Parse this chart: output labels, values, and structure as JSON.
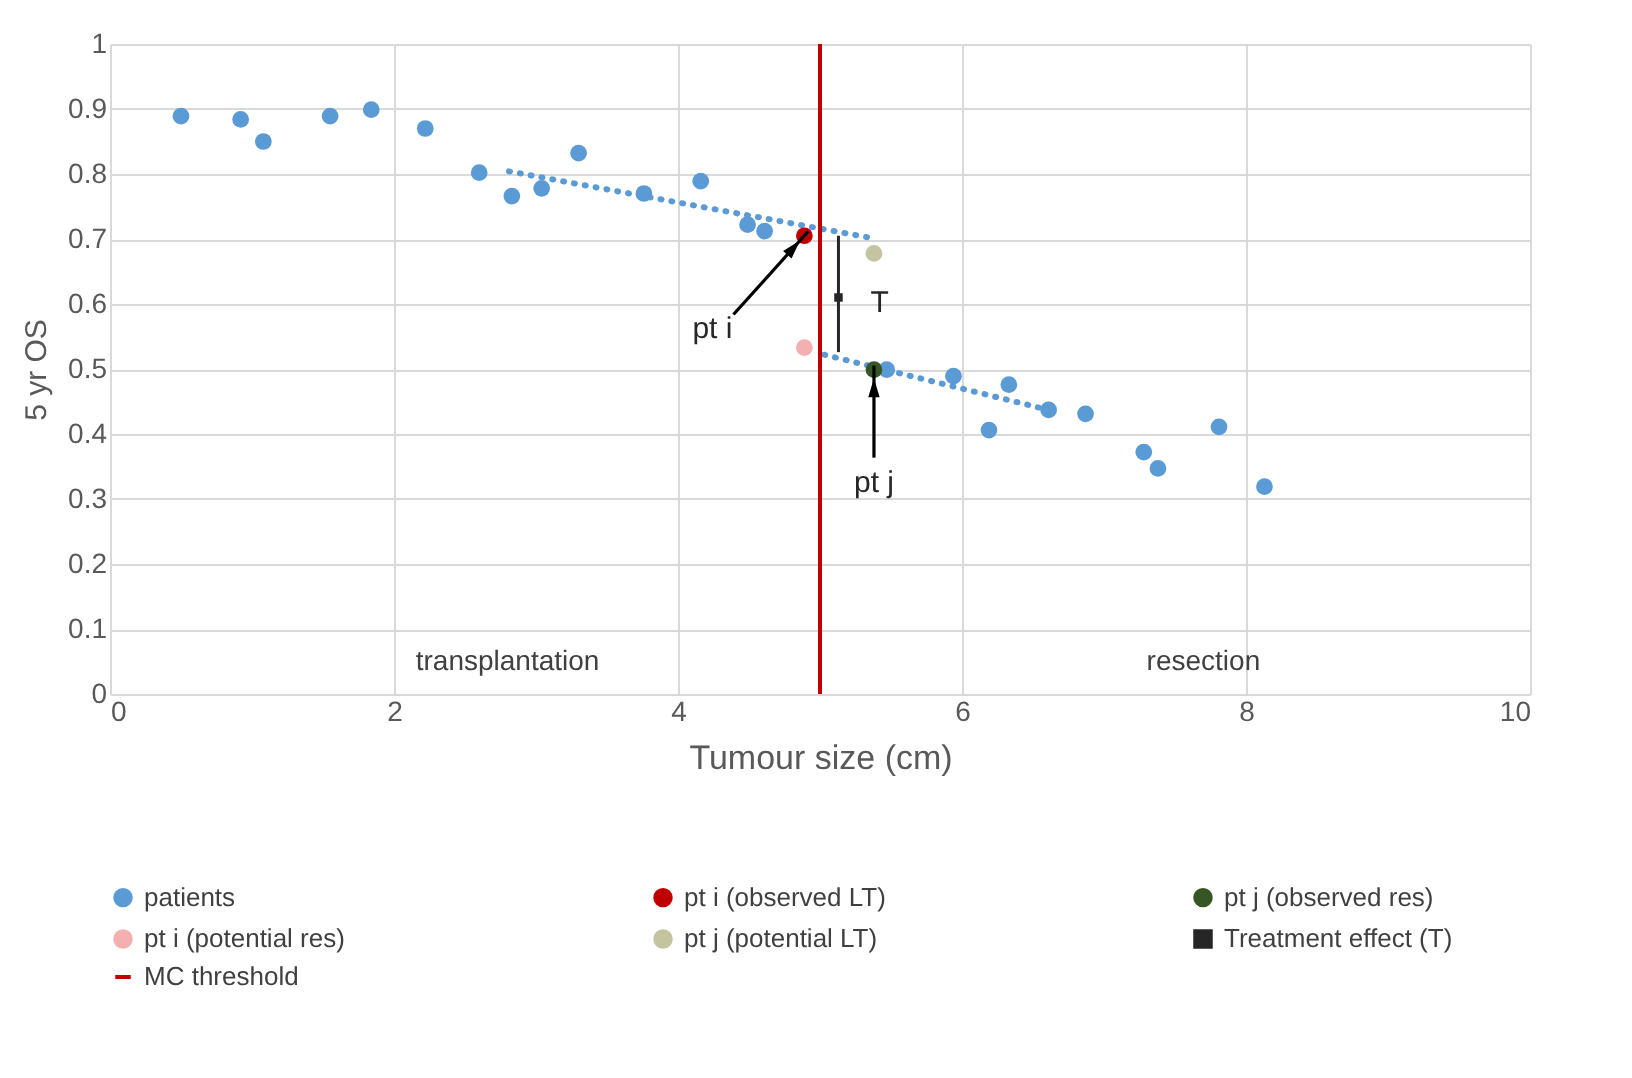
{
  "chart_data": {
    "type": "scatter",
    "xlabel": "Tumour size (cm)",
    "ylabel": "5 yr OS",
    "xlim": [
      0,
      10
    ],
    "xticks": [
      0,
      2,
      4,
      6,
      8,
      10
    ],
    "ylim": [
      0,
      1
    ],
    "yticks": [
      0,
      0.1,
      0.2,
      0.3,
      0.4,
      0.5,
      0.6,
      0.7,
      0.8,
      0.9,
      1
    ],
    "grid": true,
    "legend": "bottom",
    "series": [
      {
        "name": "patients",
        "color": "#5b9bd5",
        "marker": "circle",
        "x": [
          0.5,
          0.92,
          1.08,
          1.55,
          1.84,
          2.22,
          2.6,
          2.83,
          3.04,
          3.3,
          3.76,
          4.16,
          4.49,
          4.61,
          5.47,
          5.94,
          6.33,
          6.19,
          6.61,
          6.87,
          7.28,
          7.38,
          7.81,
          8.13
        ],
        "values": [
          0.889,
          0.884,
          0.85,
          0.889,
          0.899,
          0.87,
          0.802,
          0.766,
          0.778,
          0.832,
          0.77,
          0.789,
          0.722,
          0.712,
          0.499,
          0.489,
          0.476,
          0.406,
          0.437,
          0.431,
          0.372,
          0.347,
          0.411,
          0.319
        ]
      },
      {
        "name": "pt i (observed LT)",
        "color": "#c00000",
        "marker": "circle",
        "x": [
          4.89
        ],
        "values": [
          0.705
        ]
      },
      {
        "name": "pt j (observed res)",
        "color": "#375623",
        "marker": "circle",
        "x": [
          5.38
        ],
        "values": [
          0.499
        ]
      },
      {
        "name": "pt i (potential res)",
        "color": "#f4b0b0",
        "marker": "circle",
        "x": [
          4.89
        ],
        "values": [
          0.533
        ]
      },
      {
        "name": "pt j (potential LT)",
        "color": "#c4c4a0",
        "marker": "circle",
        "x": [
          5.38
        ],
        "values": [
          0.678
        ]
      },
      {
        "name": "Treatment effect (T)",
        "color": "#262626",
        "marker": "square",
        "x": [
          5.13
        ],
        "values": [
          0.61
        ],
        "errors": [
          [
            0.526,
            0.705
          ]
        ]
      },
      {
        "type": "line",
        "color": "#5b9bd5",
        "line_style": "dotted",
        "x": [
          2.81,
          5.4
        ],
        "values": [
          0.804,
          0.7
        ]
      },
      {
        "type": "line",
        "color": "#5b9bd5",
        "line_style": "dotted",
        "x": [
          5.03,
          6.61
        ],
        "values": [
          0.522,
          0.437
        ]
      }
    ],
    "ref_lines": [
      {
        "axis": "x",
        "value": 5,
        "label": "MC threshold",
        "color": "#c00000"
      }
    ],
    "annotations": [
      {
        "text": "pt i",
        "x": 4.89,
        "y": 0.705
      },
      {
        "text": "pt j",
        "x": 5.38,
        "y": 0.499
      },
      {
        "text": "T",
        "x": 5.13,
        "y": 0.61
      },
      "transplantation",
      "resection"
    ]
  }
}
